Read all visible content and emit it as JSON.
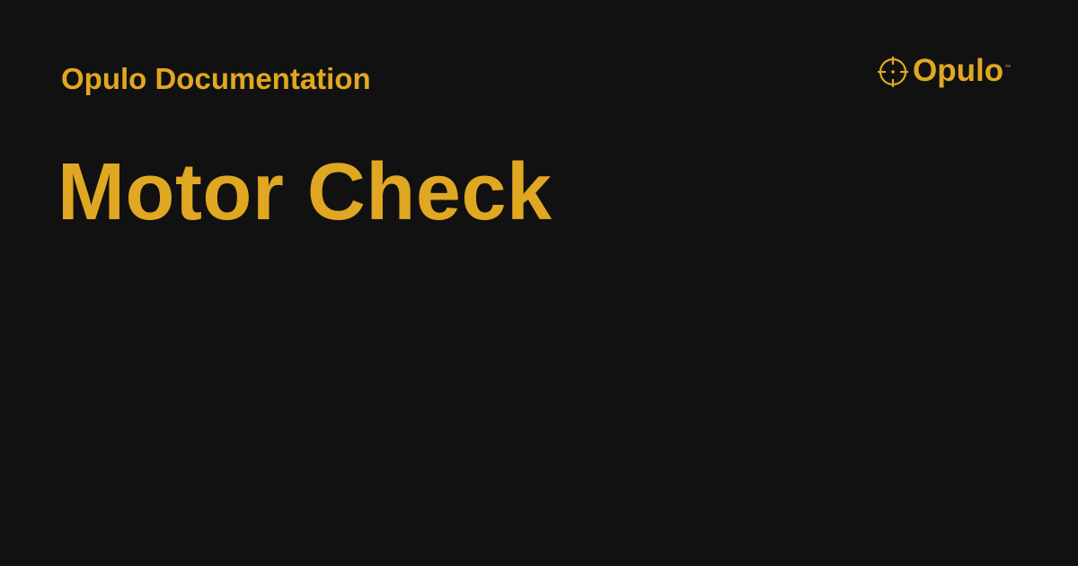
{
  "header": {
    "site_name": "Opulo Documentation"
  },
  "page": {
    "title": "Motor Check"
  },
  "logo": {
    "wordmark": "Opulo",
    "trademark": "™",
    "icon": "crosshair-icon"
  },
  "colors": {
    "background": "#111111",
    "accent": "#e0a722"
  }
}
